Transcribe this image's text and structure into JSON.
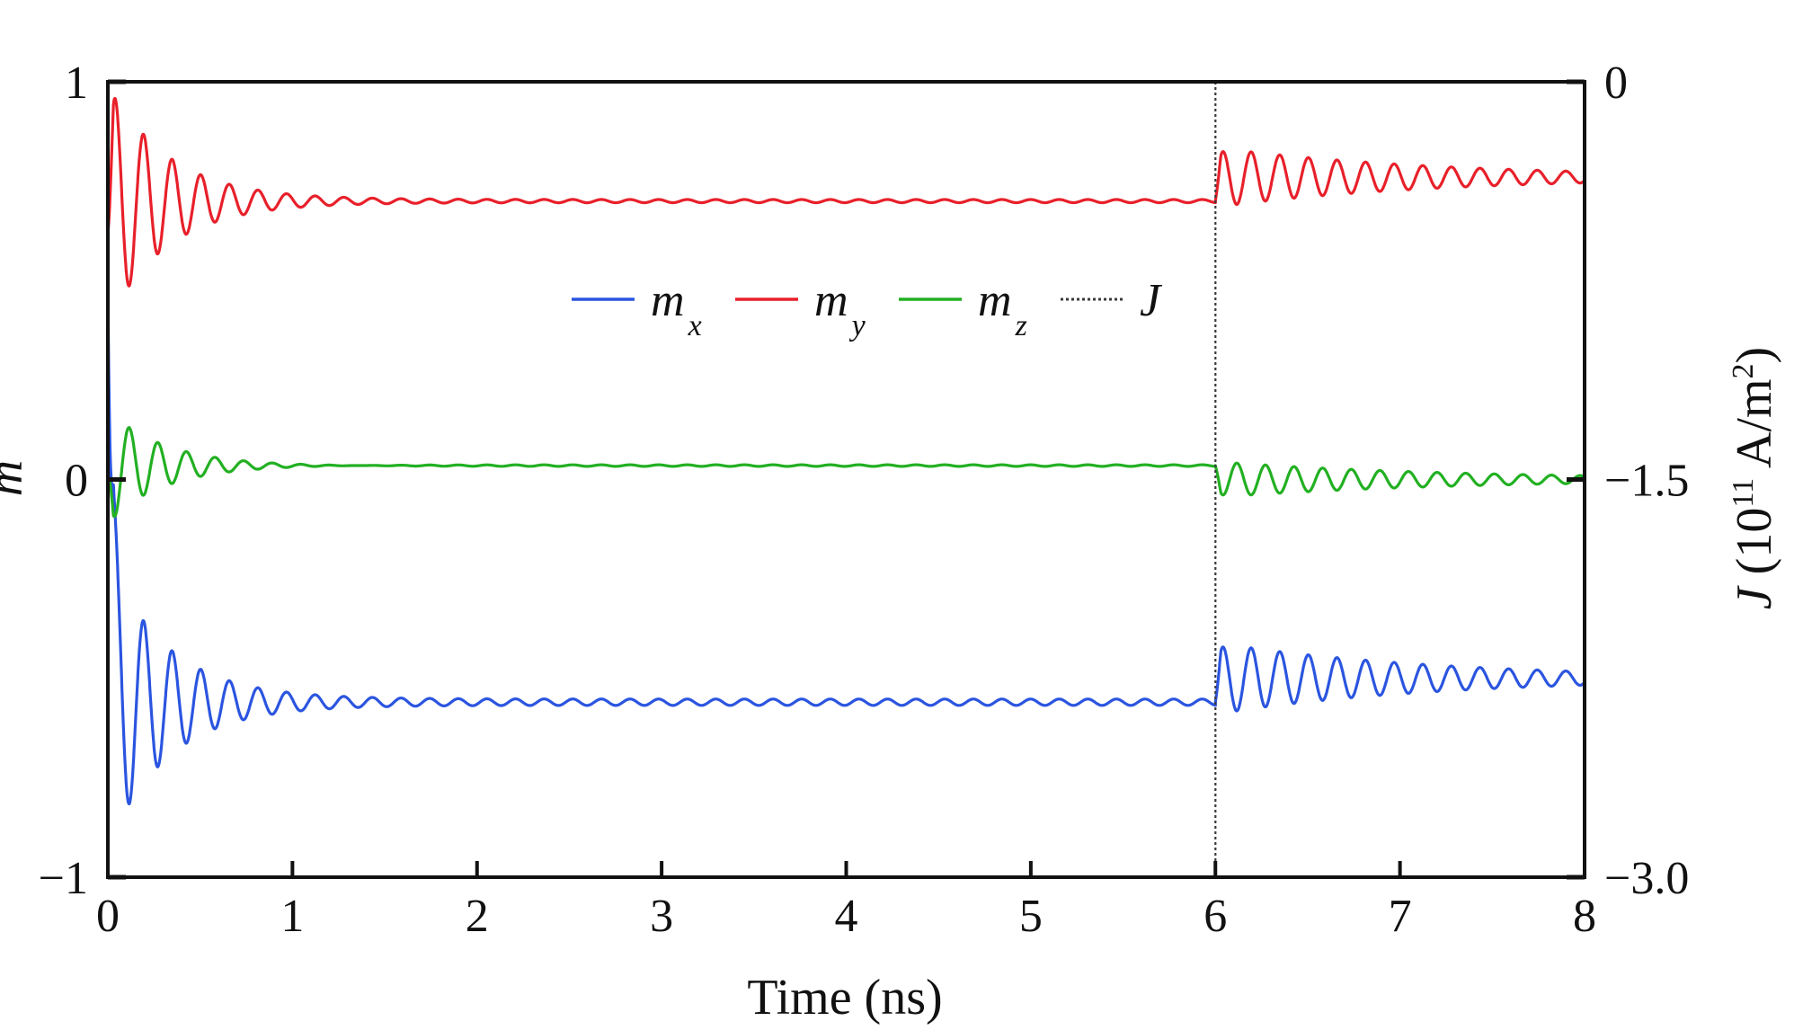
{
  "chart_data": {
    "type": "line",
    "xlabel": "Time (ns)",
    "ylabel_left": "m",
    "ylabel_right": {
      "symbol": "J",
      "prefix": " (10",
      "exponent": "11",
      "unit": " A/m",
      "unit_exponent": "2",
      "suffix": ")"
    },
    "xlim": [
      0,
      8
    ],
    "ylim_left": [
      -1,
      1
    ],
    "ylim_right": [
      -3.0,
      0
    ],
    "x_ticks": [
      "0",
      "1",
      "2",
      "3",
      "4",
      "5",
      "6",
      "7",
      "8"
    ],
    "y_left_ticks": [
      "1",
      "0",
      "−1"
    ],
    "y_right_ticks": [
      "0",
      "−1.5",
      "−3.0"
    ],
    "grid": false,
    "legend_position": "top-center",
    "series": [
      {
        "name": "m",
        "subscript": "x",
        "color": "#2b55e0",
        "segments": [
          {
            "t0": 0.0,
            "t1": 6.0,
            "initial": 0.48,
            "steady": -0.56,
            "amp": 0.36,
            "period": 0.155,
            "decay": 0.32,
            "residual": 0.008
          },
          {
            "t0": 6.0,
            "t1": 8.0,
            "initial": -0.56,
            "steady": -0.5,
            "amp": 0.09,
            "period": 0.155,
            "decay": 1.2,
            "residual": 0.0
          }
        ]
      },
      {
        "name": "m",
        "subscript": "y",
        "color": "#e8202a",
        "segments": [
          {
            "t0": 0.0,
            "t1": 6.0,
            "initial": 0.62,
            "steady": 0.7,
            "amp": 0.3,
            "period": 0.155,
            "decay": 0.32,
            "residual": 0.004
          },
          {
            "t0": 6.0,
            "t1": 8.0,
            "initial": 0.7,
            "steady": 0.76,
            "amp": 0.075,
            "period": 0.155,
            "decay": 1.2,
            "residual": 0.0
          }
        ]
      },
      {
        "name": "m",
        "subscript": "z",
        "color": "#22b022",
        "segments": [
          {
            "t0": 0.0,
            "t1": 6.0,
            "initial": 0.0,
            "steady": 0.035,
            "amp": -0.14,
            "period": 0.155,
            "decay": 0.32,
            "residual": 0.002
          },
          {
            "t0": 6.0,
            "t1": 8.0,
            "initial": 0.035,
            "steady": 0.0,
            "amp": -0.045,
            "period": 0.155,
            "decay": 1.3,
            "residual": 0.0
          }
        ]
      },
      {
        "name": "J",
        "subscript": "",
        "color": "#3a3a3a",
        "dashed": true,
        "points": [
          [
            6.0,
            0.0
          ],
          [
            6.0,
            -3.0
          ]
        ]
      }
    ]
  }
}
